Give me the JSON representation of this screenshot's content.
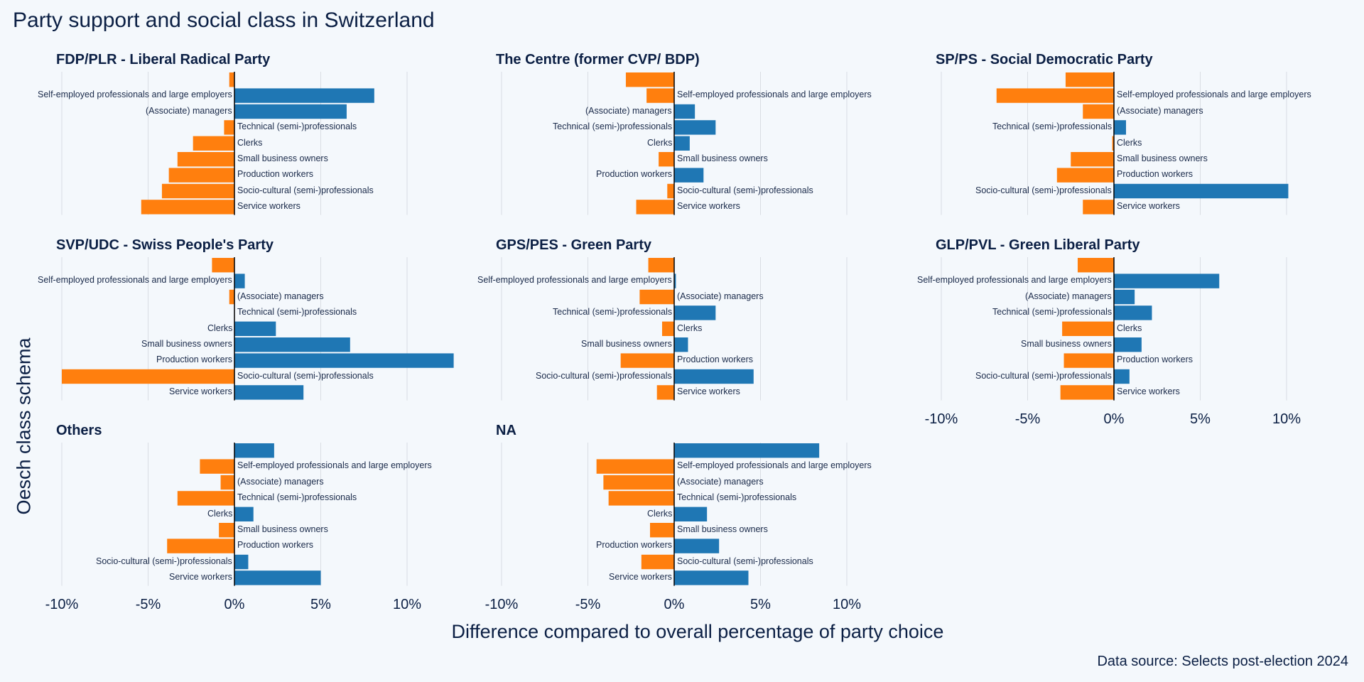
{
  "title": "Party support and social class in Switzerland",
  "ylabel": "Oesch class schema",
  "xlabel": "Difference compared to overall percentage of party choice",
  "source": "Data source: Selects post-election 2024",
  "colors": {
    "positive": "#1f77b4",
    "negative": "#ff7f0e",
    "axis": "#000000",
    "grid": "#d9dde3"
  },
  "chart_data": {
    "type": "bar",
    "orientation": "horizontal",
    "xlim": [
      -10,
      13
    ],
    "xticks": [
      "-10%",
      "-5%",
      "0%",
      "5%",
      "10%"
    ],
    "xtick_values": [
      -10,
      -5,
      0,
      5,
      10
    ],
    "categories": [
      "",
      "Self-employed professionals and large employers",
      "(Associate) managers",
      "Technical (semi-)professionals",
      "Clerks",
      "Small business owners",
      "Production workers",
      "Socio-cultural (semi-)professionals",
      "Service workers"
    ],
    "panels": [
      {
        "name": "FDP/PLR - Liberal Radical Party",
        "values": [
          -0.3,
          8.1,
          6.5,
          -0.6,
          -2.4,
          -3.3,
          -3.8,
          -4.2,
          -5.4
        ]
      },
      {
        "name": "The Centre (former CVP/ BDP)",
        "values": [
          -2.8,
          -1.6,
          1.2,
          2.4,
          0.9,
          -0.9,
          1.7,
          -0.4,
          -2.2
        ]
      },
      {
        "name": "SP/PS - Social Democratic Party",
        "values": [
          -2.8,
          -6.8,
          -1.8,
          0.7,
          -0.1,
          -2.5,
          -3.3,
          10.1,
          -1.8
        ]
      },
      {
        "name": "SVP/UDC - Swiss People's Party",
        "values": [
          -1.3,
          0.6,
          -0.3,
          0.0,
          2.4,
          6.7,
          12.7,
          -10.0,
          4.0
        ]
      },
      {
        "name": "GPS/PES - Green Party",
        "values": [
          -1.5,
          0.1,
          -2.0,
          2.4,
          -0.7,
          0.8,
          -3.1,
          4.6,
          -1.0
        ]
      },
      {
        "name": "GLP/PVL - Green Liberal Party",
        "values": [
          -2.1,
          6.1,
          1.2,
          2.2,
          -3.0,
          1.6,
          -2.9,
          0.9,
          -3.1
        ]
      },
      {
        "name": "Others",
        "values": [
          2.3,
          -2.0,
          -0.8,
          -3.3,
          1.1,
          -0.9,
          -3.9,
          0.8,
          5.0
        ]
      },
      {
        "name": "NA",
        "values": [
          8.4,
          -4.5,
          -4.1,
          -3.8,
          1.9,
          -1.4,
          2.6,
          -1.9,
          4.3
        ]
      }
    ]
  }
}
